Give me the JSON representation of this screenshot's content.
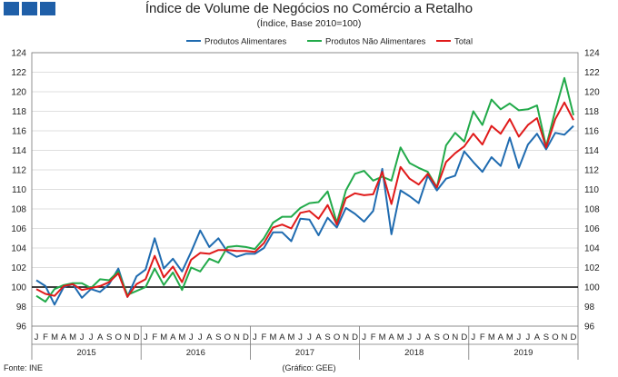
{
  "header": {
    "title": "Índice de Volume de Negócios no Comércio a Retalho",
    "subtitle": "(Índice, Base 2010=100)"
  },
  "footer": {
    "source": "Fonte: INE",
    "credit": "(Gráfico: GEE)"
  },
  "colors": {
    "alimentares": "#1f6bb0",
    "nao_alimentares": "#22aa4a",
    "total": "#e01a1a",
    "logo": "#1f5fa8"
  },
  "chart_data": {
    "type": "line",
    "title": "Índice de Volume de Negócios no Comércio a Retalho",
    "subtitle": "(Índice, Base 2010=100)",
    "ylim": [
      96,
      124
    ],
    "yticks": [
      96,
      98,
      100,
      102,
      104,
      106,
      108,
      110,
      112,
      114,
      116,
      118,
      120,
      122,
      124
    ],
    "reference_line": 100,
    "legend_position": "top",
    "x": [
      "J",
      "F",
      "M",
      "A",
      "M",
      "J",
      "J",
      "A",
      "S",
      "O",
      "N",
      "D",
      "J",
      "F",
      "M",
      "A",
      "M",
      "J",
      "J",
      "A",
      "S",
      "O",
      "N",
      "D",
      "J",
      "F",
      "M",
      "A",
      "M",
      "J",
      "J",
      "A",
      "S",
      "O",
      "N",
      "D",
      "J",
      "F",
      "M",
      "A",
      "M",
      "J",
      "J",
      "A",
      "S",
      "O",
      "N",
      "D",
      "J",
      "F",
      "M",
      "A",
      "M",
      "J",
      "J",
      "A",
      "S",
      "O",
      "N",
      "D"
    ],
    "years": [
      "2015",
      "2016",
      "2017",
      "2018",
      "2019"
    ],
    "series": [
      {
        "name": "Produtos Alimentares",
        "color": "#1f6bb0",
        "values": [
          100.7,
          100.1,
          98.2,
          100.0,
          100.3,
          98.9,
          99.8,
          99.5,
          100.3,
          101.9,
          99.0,
          101.1,
          101.8,
          105.0,
          101.9,
          102.9,
          101.6,
          103.6,
          105.8,
          104.1,
          105.0,
          103.6,
          103.1,
          103.4,
          103.4,
          104.0,
          105.6,
          105.6,
          104.7,
          107.0,
          106.9,
          105.3,
          107.1,
          106.1,
          108.1,
          107.5,
          106.7,
          107.8,
          112.1,
          105.4,
          109.9,
          109.3,
          108.6,
          111.4,
          109.9,
          111.1,
          111.4,
          113.9,
          112.8,
          111.8,
          113.3,
          112.4,
          115.3,
          112.2,
          114.6,
          115.7,
          114.1,
          115.8,
          115.6,
          116.5
        ]
      },
      {
        "name": "Produtos Não Alimentares",
        "color": "#22aa4a",
        "values": [
          99.1,
          98.5,
          99.8,
          100.2,
          100.4,
          100.4,
          99.9,
          100.8,
          100.7,
          101.6,
          99.2,
          99.6,
          100.0,
          101.9,
          100.2,
          101.5,
          99.7,
          102.0,
          101.6,
          102.9,
          102.5,
          104.1,
          104.2,
          104.1,
          103.9,
          105.0,
          106.6,
          107.2,
          107.2,
          108.1,
          108.6,
          108.7,
          109.8,
          106.6,
          109.9,
          111.6,
          111.9,
          110.9,
          111.3,
          110.9,
          114.3,
          112.7,
          112.2,
          111.8,
          110.2,
          114.5,
          115.8,
          114.9,
          118.0,
          116.6,
          119.2,
          118.2,
          118.8,
          118.1,
          118.2,
          118.6,
          114.4,
          118.1,
          121.4,
          117.6
        ]
      },
      {
        "name": "Total",
        "color": "#e01a1a",
        "values": [
          99.8,
          99.3,
          99.1,
          100.1,
          100.3,
          99.7,
          99.9,
          100.1,
          100.5,
          101.4,
          99.0,
          100.3,
          100.8,
          103.2,
          101.0,
          102.1,
          100.5,
          102.8,
          103.5,
          103.4,
          103.8,
          103.8,
          103.7,
          103.7,
          103.6,
          104.5,
          106.1,
          106.4,
          106.0,
          107.6,
          107.8,
          107.0,
          108.4,
          106.4,
          109.1,
          109.6,
          109.4,
          109.5,
          111.8,
          108.5,
          112.3,
          111.1,
          110.5,
          111.6,
          110.2,
          112.8,
          113.7,
          114.4,
          115.7,
          114.6,
          116.5,
          115.7,
          117.2,
          115.4,
          116.6,
          117.3,
          114.3,
          117.2,
          118.9,
          117.1
        ]
      }
    ]
  }
}
